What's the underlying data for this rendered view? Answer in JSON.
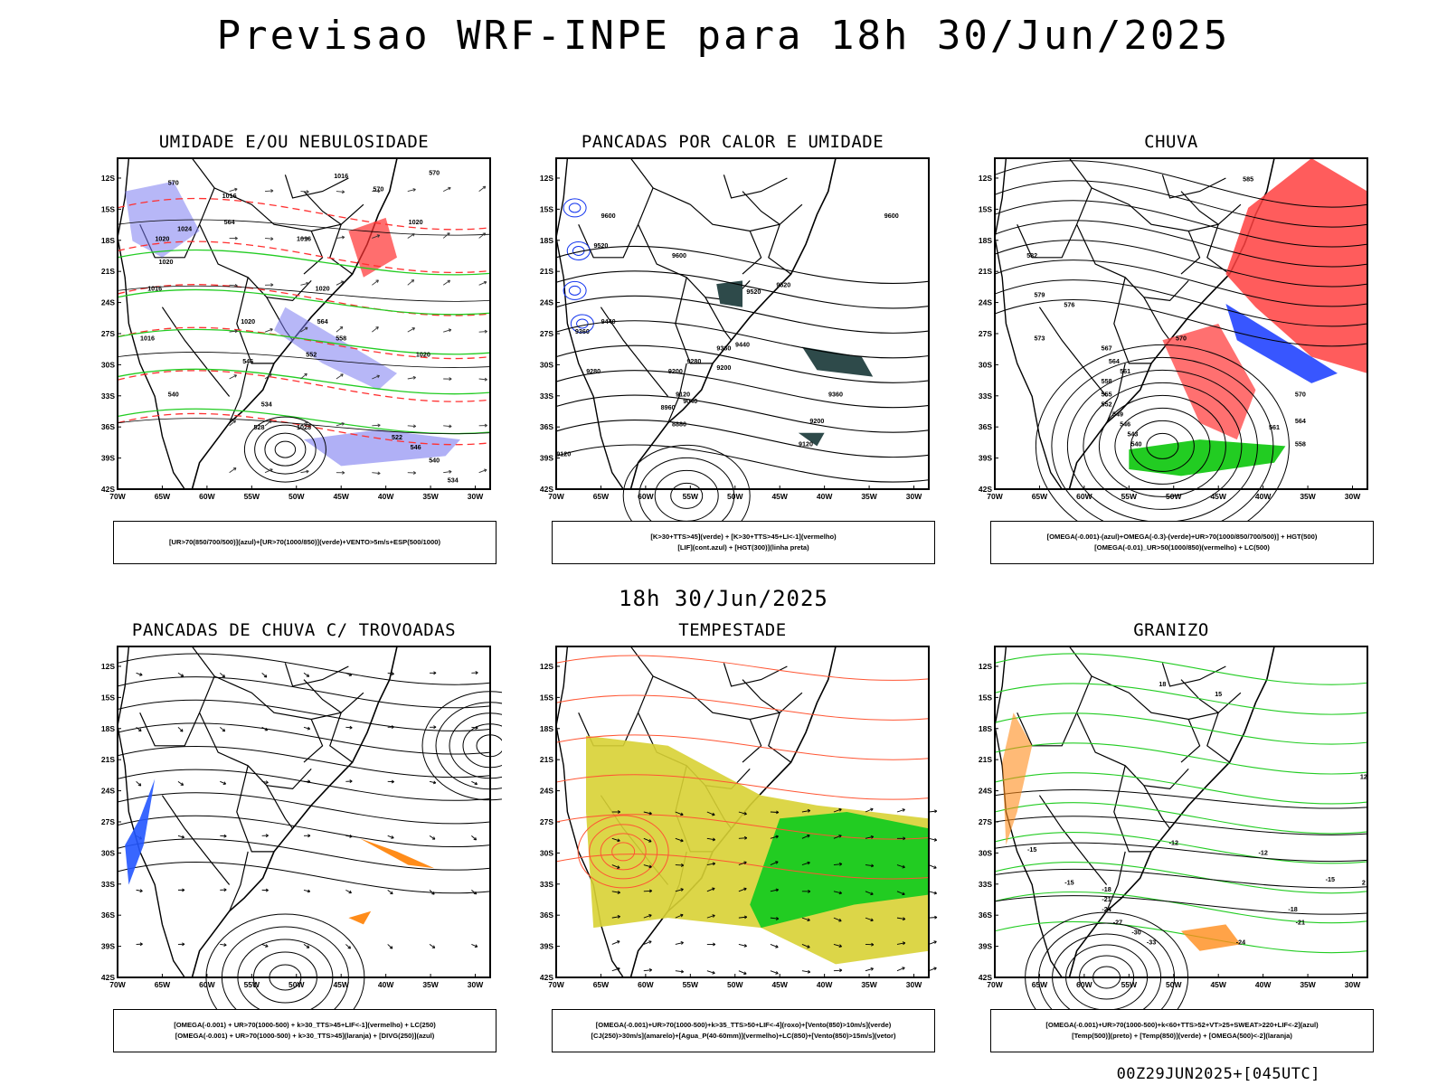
{
  "header": {
    "title": "Previsao WRF-INPE  para 18h 30/Jun/2025",
    "subtitle": "18h 30/Jun/2025"
  },
  "footer": {
    "run": "00Z29JUN2025+[045UTC]"
  },
  "axes": {
    "lat_labels": [
      "12S",
      "15S",
      "18S",
      "21S",
      "24S",
      "27S",
      "30S",
      "33S",
      "36S",
      "39S",
      "42S"
    ],
    "lon_labels": [
      "70W",
      "65W",
      "60W",
      "55W",
      "50W",
      "45W",
      "40W",
      "35W",
      "30W"
    ]
  },
  "panels": [
    {
      "id": "umidade",
      "title": "UMIDADE E/OU NEBULOSIDADE",
      "legend": [
        "[UR>70(850/700/500)](azul)+[UR>70(1000/850)](verde)+VENTO>5m/s+ESP(500/1000)"
      ],
      "labels": [
        "1016",
        "1016",
        "1016",
        "1020",
        "1020",
        "1020",
        "1020",
        "1020",
        "1016",
        "1020",
        "1028",
        "1016",
        "1024",
        "570",
        "570",
        "570",
        "564",
        "564",
        "558",
        "552",
        "546",
        "540",
        "534",
        "528",
        "522",
        "546",
        "540",
        "534"
      ],
      "colors": {
        "blue": "#7b7bf0",
        "green": "#22cc22",
        "red": "#ff3030"
      }
    },
    {
      "id": "pancadas-calor",
      "title": "PANCADAS POR CALOR E UMIDADE",
      "legend": [
        "[K>30+TTS>45](verde) + [K>30+TTS>45+LI<-1](vermelho)",
        "[LIF](cont.azul) + [HGT(300)](linha preta)"
      ],
      "labels": [
        "9600",
        "9520",
        "9600",
        "9600",
        "9520",
        "9440",
        "9360",
        "9280",
        "9200",
        "9120",
        "9360",
        "9200",
        "9120",
        "9040",
        "8960",
        "8880",
        "9520",
        "9440",
        "9360",
        "9280",
        "9200",
        "9120"
      ],
      "colors": {
        "shade": "#2e4a4a",
        "contour": "#1133ee"
      }
    },
    {
      "id": "chuva",
      "title": "CHUVA",
      "legend": [
        "[OMEGA(-0.001)-(azul)+OMEGA(-0.3)-(verde)+UR>70(1000/850/700/500)] + HGT(500)",
        "[OMEGA(-0.01)_UR>50(1000/850)(vermelho) + LC(500)"
      ],
      "labels": [
        "585",
        "582",
        "579",
        "576",
        "573",
        "570",
        "567",
        "564",
        "561",
        "558",
        "555",
        "552",
        "549",
        "546",
        "543",
        "540",
        "570",
        "564",
        "561",
        "558"
      ],
      "colors": {
        "red": "#ff4040",
        "green": "#22cc22",
        "blue": "#2244ff"
      }
    },
    {
      "id": "trovoadas",
      "title": "PANCADAS DE CHUVA C/ TROVOADAS",
      "legend": [
        "[OMEGA(-0.001) + UR>70(1000-500) + k>30_TTS>45+LIF<-1](vermelho) + LC(250)",
        "[OMEGA(-0.001) + UR>70(1000-500) + k>30_TTS>45](laranja) + [DIVG(250)](azul)"
      ],
      "labels": [],
      "colors": {
        "orange": "#ff8c1a",
        "blue": "#2255ff"
      }
    },
    {
      "id": "tempestade",
      "title": "TEMPESTADE",
      "legend": [
        "[OMEGA(-0.001)+UR>70(1000-500)+k>35_TTS>50+LIF<-4](roxo)+[Vento(850)>10m/s](verde)",
        "[CJ(250)>30m/s](amarelo)+[Agua_P(40-60mm)](vermelho)+LC(850)+[Vento(850)>15m/s](vetor)"
      ],
      "labels": [],
      "colors": {
        "yellow": "#d8d234",
        "green": "#22cc22",
        "red": "#ff5533"
      }
    },
    {
      "id": "granizo",
      "title": "GRANIZO",
      "legend": [
        "[OMEGA(-0.001)+UR>70(1000-500)+k<60+TTS>52+VT>25+SWEAT>220+LIF<-2](azul)",
        "[Temp(500)](preto) + [Temp(850)](verde) + [OMEGA(500)<-2](laranja)"
      ],
      "labels": [
        "-12",
        "-15",
        "-15",
        "-18",
        "-21",
        "-24",
        "-27",
        "-30",
        "-33",
        "-12",
        "-15",
        "-18",
        "-21",
        "-24",
        "2",
        "12",
        "15",
        "18"
      ],
      "colors": {
        "green": "#22cc22",
        "orange": "#ff8c1a"
      }
    }
  ]
}
